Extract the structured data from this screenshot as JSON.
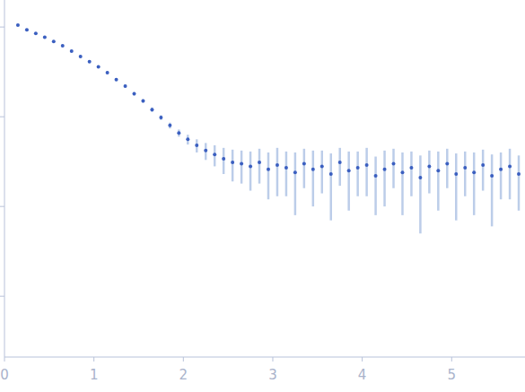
{
  "chart_data": {
    "type": "scatter",
    "log": "y",
    "tick_labels": "x",
    "marker": "circle",
    "color": "#3b5fc0",
    "xlim": [
      0,
      5.82
    ],
    "ylim": [
      0.00021,
      2
    ],
    "xticks": [
      0,
      1,
      2,
      3,
      4,
      5
    ],
    "yticks": [
      0.001,
      0.01,
      0.1,
      1
    ],
    "x": [
      0.15,
      0.25,
      0.35,
      0.45,
      0.55,
      0.65,
      0.75,
      0.85,
      0.95,
      1.05,
      1.15,
      1.25,
      1.35,
      1.45,
      1.55,
      1.65,
      1.75,
      1.85,
      1.95,
      2.05,
      2.15,
      2.25,
      2.35,
      2.45,
      2.55,
      2.65,
      2.75,
      2.85,
      2.95,
      3.05,
      3.15,
      3.25,
      3.35,
      3.45,
      3.55,
      3.65,
      3.75,
      3.85,
      3.95,
      4.05,
      4.15,
      4.25,
      4.35,
      4.45,
      4.55,
      4.65,
      4.75,
      4.85,
      4.95,
      5.05,
      5.15,
      5.25,
      5.35,
      5.45,
      5.55,
      5.65,
      5.75
    ],
    "values": [
      1.05,
      0.93,
      0.85,
      0.77,
      0.69,
      0.62,
      0.54,
      0.47,
      0.41,
      0.36,
      0.31,
      0.26,
      0.22,
      0.18,
      0.15,
      0.12,
      0.098,
      0.08,
      0.066,
      0.056,
      0.048,
      0.042,
      0.038,
      0.034,
      0.031,
      0.03,
      0.028,
      0.031,
      0.026,
      0.029,
      0.027,
      0.024,
      0.03,
      0.026,
      0.028,
      0.023,
      0.031,
      0.025,
      0.027,
      0.029,
      0.022,
      0.026,
      0.03,
      0.024,
      0.027,
      0.021,
      0.028,
      0.025,
      0.03,
      0.023,
      0.027,
      0.024,
      0.029,
      0.022,
      0.026,
      0.028,
      0.023
    ],
    "errors": [
      0.02,
      0.02,
      0.018,
      0.017,
      0.016,
      0.015,
      0.014,
      0.013,
      0.012,
      0.011,
      0.01,
      0.009,
      0.008,
      0.008,
      0.007,
      0.007,
      0.006,
      0.006,
      0.006,
      0.007,
      0.008,
      0.009,
      0.01,
      0.011,
      0.012,
      0.012,
      0.013,
      0.013,
      0.014,
      0.016,
      0.014,
      0.016,
      0.014,
      0.016,
      0.014,
      0.016,
      0.014,
      0.016,
      0.014,
      0.016,
      0.014,
      0.016,
      0.014,
      0.016,
      0.014,
      0.016,
      0.014,
      0.016,
      0.014,
      0.016,
      0.014,
      0.016,
      0.014,
      0.016,
      0.014,
      0.016,
      0.014
    ]
  }
}
